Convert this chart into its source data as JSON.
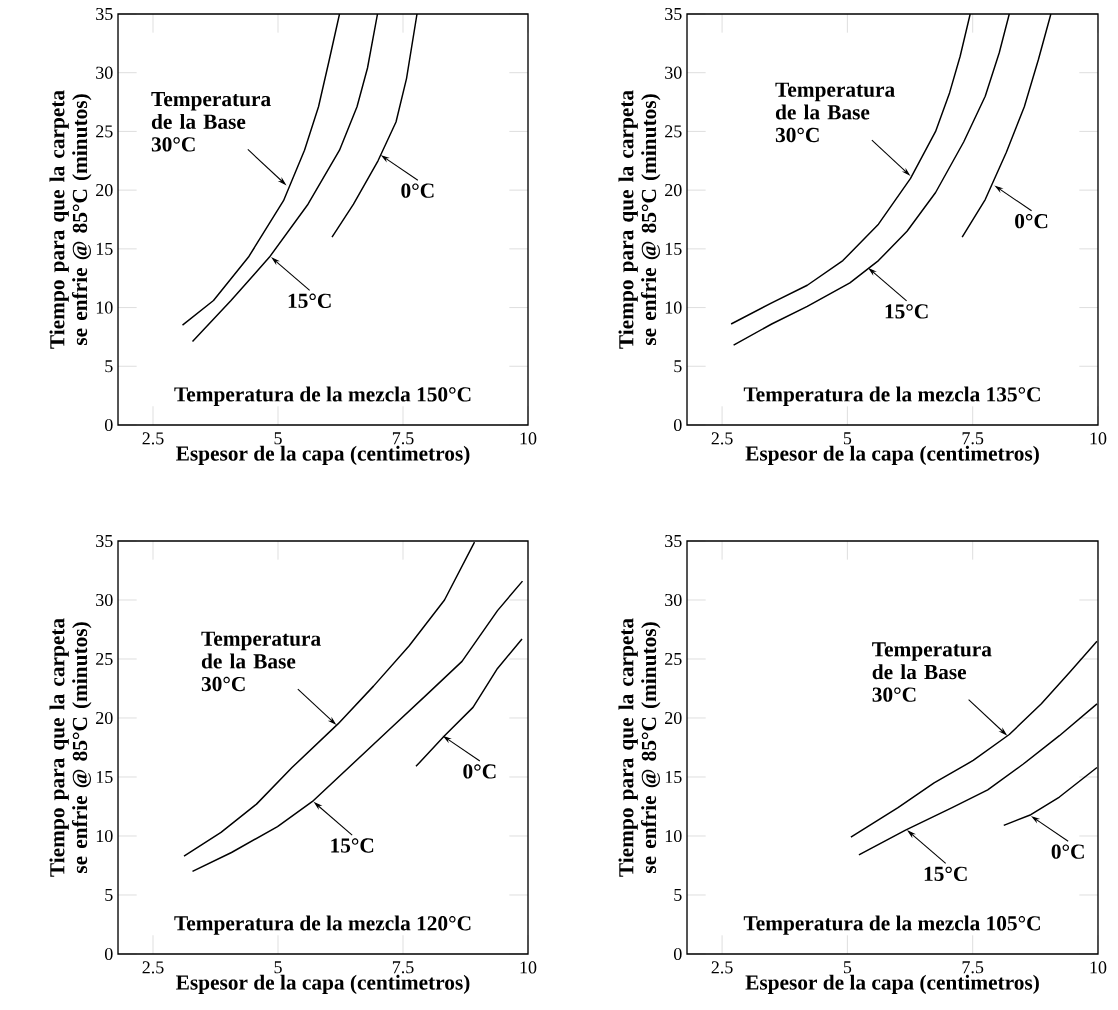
{
  "chart_data": [
    {
      "type": "line",
      "xlabel": "Espesor de la capa (centimetros)",
      "ylabel": "Tiempo para que la carpeta se enfrie @ 85°C (minutos)",
      "xlim": [
        1.8,
        10
      ],
      "ylim": [
        0,
        35
      ],
      "xticks": [
        2.5,
        5,
        7.5,
        10
      ],
      "yticks": [
        0,
        5,
        10,
        15,
        20,
        25,
        30,
        35
      ],
      "series": [
        {
          "color": "#000000",
          "x": [
            3.09,
            3.71,
            4.41,
            5.11,
            5.53,
            5.81,
            6.02,
            6.23
          ],
          "values": [
            8.5,
            10.6,
            14.3,
            19.1,
            23.4,
            27.1,
            31.0,
            35.0
          ]
        },
        {
          "color": "#000000",
          "x": [
            3.29,
            4.06,
            4.83,
            5.6,
            6.23,
            6.58,
            6.79,
            6.99
          ],
          "values": [
            7.1,
            10.6,
            14.3,
            18.8,
            23.4,
            27.1,
            30.4,
            35.0
          ]
        },
        {
          "color": "#000000",
          "x": [
            6.08,
            6.51,
            7.0,
            7.36,
            7.57,
            7.78
          ],
          "values": [
            16.0,
            18.8,
            22.5,
            25.8,
            29.5,
            35.0
          ]
        }
      ],
      "annotations": [
        {
          "text": "Temperatura de la Base 30°C",
          "x": 5.17,
          "y": 20.4
        },
        {
          "text": "15°C",
          "x": 4.86,
          "y": 14.3
        },
        {
          "text": "0°C",
          "x": 7.05,
          "y": 23.0
        },
        "Temperatura de la mezcla 150°C"
      ]
    },
    {
      "type": "line",
      "xlabel": "Espesor de la capa (centimetros)",
      "ylabel": "Tiempo para que la carpeta se enfrie @ 85°C (minutos)",
      "xlim": [
        1.8,
        10
      ],
      "ylim": [
        0,
        35
      ],
      "xticks": [
        2.5,
        5,
        7.5,
        10
      ],
      "yticks": [
        0,
        5,
        10,
        15,
        20,
        25,
        30,
        35
      ],
      "series": [
        {
          "color": "#000000",
          "x": [
            2.68,
            3.49,
            4.2,
            4.91,
            5.62,
            6.26,
            6.76,
            7.04,
            7.25,
            7.45
          ],
          "values": [
            8.6,
            10.4,
            11.9,
            14.0,
            17.1,
            21.0,
            25.0,
            28.3,
            31.4,
            35.0
          ]
        },
        {
          "color": "#000000",
          "x": [
            2.73,
            3.49,
            4.2,
            5.05,
            5.62,
            6.19,
            6.76,
            7.32,
            7.75,
            8.03,
            8.23
          ],
          "values": [
            6.8,
            8.6,
            10.1,
            12.1,
            14.0,
            16.5,
            19.8,
            24.1,
            28.0,
            31.7,
            35.0
          ]
        },
        {
          "color": "#000000",
          "x": [
            7.29,
            7.75,
            8.17,
            8.53,
            8.81,
            9.06
          ],
          "values": [
            16.0,
            19.2,
            23.2,
            27.1,
            31.1,
            35.0
          ]
        }
      ],
      "annotations": [
        {
          "text": "Temperatura de la Base 30°C",
          "x": 6.26,
          "y": 21.2
        },
        {
          "text": "15°C",
          "x": 5.41,
          "y": 13.4
        },
        {
          "text": "0°C",
          "x": 7.93,
          "y": 20.4
        },
        "Temperatura de la mezcla 135°C"
      ]
    },
    {
      "type": "line",
      "xlabel": "Espesor de la capa (centimetros)",
      "ylabel": "Tiempo para que la carpeta se enfrie @ 85°C (minutos)",
      "xlim": [
        1.8,
        10
      ],
      "ylim": [
        0,
        35
      ],
      "xticks": [
        2.5,
        5,
        7.5,
        10
      ],
      "yticks": [
        0,
        5,
        10,
        15,
        20,
        25,
        30,
        35
      ],
      "series": [
        {
          "color": "#000000",
          "x": [
            3.12,
            3.86,
            4.57,
            5.28,
            6.2,
            6.91,
            7.62,
            8.33,
            8.93
          ],
          "values": [
            8.3,
            10.3,
            12.7,
            15.8,
            19.5,
            22.7,
            26.1,
            30.0,
            34.9
          ]
        },
        {
          "color": "#000000",
          "x": [
            3.29,
            4.07,
            4.99,
            5.71,
            6.49,
            7.27,
            7.98,
            8.68,
            9.39,
            9.89
          ],
          "values": [
            7.0,
            8.6,
            10.8,
            13.0,
            16.1,
            19.2,
            22.0,
            24.8,
            29.1,
            31.6
          ]
        },
        {
          "color": "#000000",
          "x": [
            7.76,
            8.33,
            8.9,
            9.39,
            9.88
          ],
          "values": [
            15.9,
            18.5,
            20.9,
            24.2,
            26.7
          ]
        }
      ],
      "annotations": [
        {
          "text": "Temperatura de la Base 30°C",
          "x": 6.17,
          "y": 19.4
        },
        {
          "text": "15°C",
          "x": 5.71,
          "y": 12.9
        },
        {
          "text": "0°C",
          "x": 8.29,
          "y": 18.5
        },
        "Temperatura de la mezcla 120°C"
      ]
    },
    {
      "type": "line",
      "xlabel": "Espesor de la capa (centimetros)",
      "ylabel": "Tiempo para que la carpeta se enfrie @ 85°C (minutos)",
      "xlim": [
        1.8,
        10
      ],
      "ylim": [
        0,
        35
      ],
      "xticks": [
        2.5,
        5,
        7.5,
        10
      ],
      "yticks": [
        0,
        5,
        10,
        15,
        20,
        25,
        30,
        35
      ],
      "series": [
        {
          "color": "#000000",
          "x": [
            5.07,
            6.01,
            6.73,
            7.51,
            8.23,
            8.87,
            9.44,
            9.98
          ],
          "values": [
            9.9,
            12.4,
            14.5,
            16.4,
            18.6,
            21.2,
            23.9,
            26.5
          ]
        },
        {
          "color": "#000000",
          "x": [
            5.23,
            6.16,
            7.09,
            7.8,
            8.51,
            9.23,
            9.98
          ],
          "values": [
            8.4,
            10.5,
            12.4,
            13.9,
            16.1,
            18.5,
            21.2
          ]
        },
        {
          "color": "#000000",
          "x": [
            8.12,
            8.66,
            9.23,
            9.98
          ],
          "values": [
            10.9,
            11.8,
            13.3,
            15.8
          ]
        }
      ],
      "annotations": [
        {
          "text": "Temperatura de la Base 30°C",
          "x": 8.19,
          "y": 18.5
        },
        {
          "text": "15°C",
          "x": 6.19,
          "y": 10.5
        },
        {
          "text": "0°C",
          "x": 8.66,
          "y": 11.7
        },
        "Temperatura de la mezcla 105°C"
      ]
    }
  ]
}
